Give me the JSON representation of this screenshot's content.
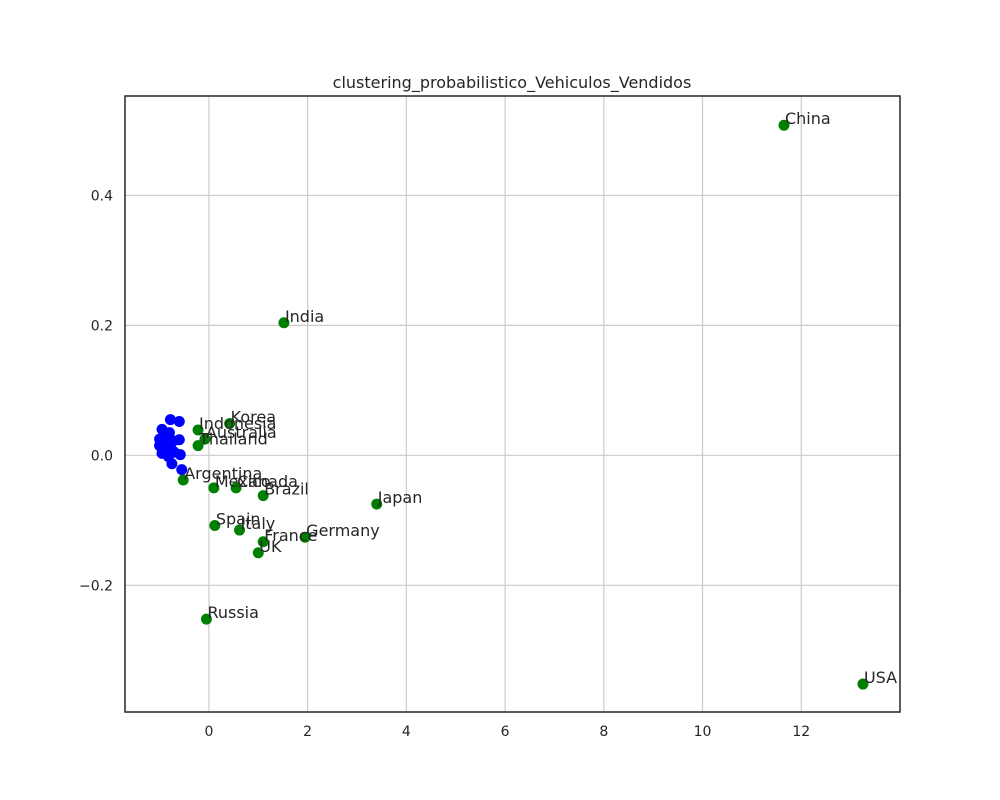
{
  "chart_data": {
    "type": "scatter",
    "title": "clustering_probabilistico_Vehiculos_Vendidos",
    "xlabel": "",
    "ylabel": "",
    "xlim": [
      -1.7,
      14.0
    ],
    "ylim": [
      -0.395,
      0.553
    ],
    "xticks": [
      0,
      2,
      4,
      6,
      8,
      10,
      12
    ],
    "yticks": [
      -0.2,
      0.0,
      0.2,
      0.4
    ],
    "xtick_labels": [
      "0",
      "2",
      "4",
      "6",
      "8",
      "10",
      "12"
    ],
    "ytick_labels": [
      "−0.2",
      "0.0",
      "0.2",
      "0.4"
    ],
    "grid": true,
    "colors": {
      "cluster_0": "#0000ff",
      "cluster_1": "#008000"
    },
    "series": [
      {
        "cluster": "cluster_0",
        "points": [
          {
            "x": -0.78,
            "y": 0.055
          },
          {
            "x": -0.6,
            "y": 0.052
          },
          {
            "x": -0.95,
            "y": 0.04
          },
          {
            "x": -0.8,
            "y": 0.035
          },
          {
            "x": -1.0,
            "y": 0.025
          },
          {
            "x": -0.88,
            "y": 0.027
          },
          {
            "x": -0.6,
            "y": 0.024
          },
          {
            "x": -0.72,
            "y": 0.022
          },
          {
            "x": -1.0,
            "y": 0.015
          },
          {
            "x": -0.85,
            "y": 0.018
          },
          {
            "x": -0.92,
            "y": 0.008
          },
          {
            "x": -0.78,
            "y": 0.012
          },
          {
            "x": -0.95,
            "y": 0.003
          },
          {
            "x": -0.7,
            "y": 0.005
          },
          {
            "x": -0.58,
            "y": 0.001
          },
          {
            "x": -0.82,
            "y": -0.002
          },
          {
            "x": -0.75,
            "y": -0.013
          },
          {
            "x": -0.55,
            "y": -0.022
          }
        ]
      },
      {
        "cluster": "cluster_1",
        "points": [
          {
            "x": 11.65,
            "y": 0.508,
            "label": "China"
          },
          {
            "x": 1.52,
            "y": 0.204,
            "label": "India"
          },
          {
            "x": 0.42,
            "y": 0.049,
            "label": "Korea"
          },
          {
            "x": -0.22,
            "y": 0.039,
            "label": "Indonesia"
          },
          {
            "x": -0.08,
            "y": 0.025,
            "label": "Australia"
          },
          {
            "x": -0.22,
            "y": 0.015,
            "label": "Thailand"
          },
          {
            "x": -0.52,
            "y": -0.038,
            "label": "Argentina"
          },
          {
            "x": 0.1,
            "y": -0.05,
            "label": "Mexico"
          },
          {
            "x": 0.55,
            "y": -0.05,
            "label": "Canada"
          },
          {
            "x": 1.1,
            "y": -0.062,
            "label": "Brazil"
          },
          {
            "x": 3.4,
            "y": -0.075,
            "label": "Japan"
          },
          {
            "x": 0.12,
            "y": -0.108,
            "label": "Spain"
          },
          {
            "x": 0.62,
            "y": -0.115,
            "label": "Italy"
          },
          {
            "x": 1.95,
            "y": -0.126,
            "label": "Germany"
          },
          {
            "x": 1.1,
            "y": -0.133,
            "label": "France"
          },
          {
            "x": 1.0,
            "y": -0.15,
            "label": "UK"
          },
          {
            "x": -0.05,
            "y": -0.252,
            "label": "Russia"
          },
          {
            "x": 13.25,
            "y": -0.352,
            "label": "USA"
          }
        ]
      }
    ]
  }
}
